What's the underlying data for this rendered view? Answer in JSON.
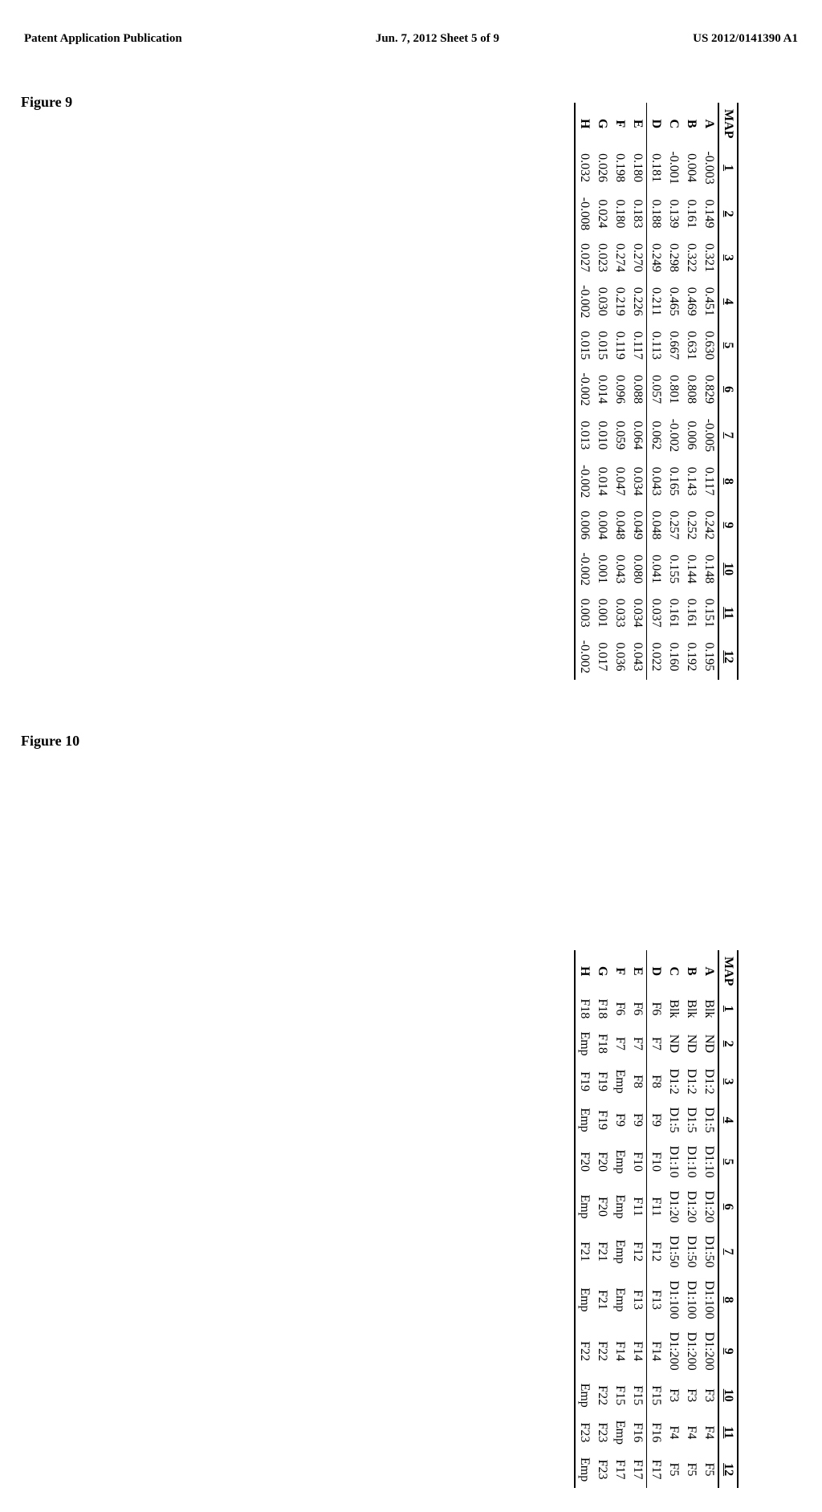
{
  "header": {
    "left": "Patent Application Publication",
    "center": "Jun. 7, 2012  Sheet 5 of 9",
    "right": "US 2012/0141390 A1"
  },
  "figure9": {
    "label": "Figure 9",
    "columns": [
      "MAP",
      "1",
      "2",
      "3",
      "4",
      "5",
      "6",
      "7",
      "8",
      "9",
      "10",
      "11",
      "12"
    ],
    "rows": [
      [
        "A",
        "-0.003",
        "0.149",
        "0.321",
        "0.451",
        "0.630",
        "0.829",
        "-0.005",
        "0.117",
        "0.242",
        "0.148",
        "0.151",
        "0.195"
      ],
      [
        "B",
        "0.004",
        "0.161",
        "0.322",
        "0.469",
        "0.631",
        "0.808",
        "0.006",
        "0.143",
        "0.252",
        "0.144",
        "0.161",
        "0.192"
      ],
      [
        "C",
        "-0.001",
        "0.139",
        "0.298",
        "0.465",
        "0.667",
        "0.801",
        "-0.002",
        "0.165",
        "0.257",
        "0.155",
        "0.161",
        "0.160"
      ],
      [
        "D",
        "0.181",
        "0.188",
        "0.249",
        "0.211",
        "0.113",
        "0.057",
        "0.062",
        "0.043",
        "0.048",
        "0.041",
        "0.037",
        "0.022"
      ],
      [
        "E",
        "0.180",
        "0.183",
        "0.270",
        "0.226",
        "0.117",
        "0.088",
        "0.064",
        "0.034",
        "0.049",
        "0.080",
        "0.034",
        "0.043"
      ],
      [
        "F",
        "0.198",
        "0.180",
        "0.274",
        "0.219",
        "0.119",
        "0.096",
        "0.059",
        "0.047",
        "0.048",
        "0.043",
        "0.033",
        "0.036"
      ],
      [
        "G",
        "0.026",
        "0.024",
        "0.023",
        "0.030",
        "0.015",
        "0.014",
        "0.010",
        "0.014",
        "0.004",
        "0.001",
        "0.001",
        "0.017"
      ],
      [
        "H",
        "0.032",
        "-0.008",
        "0.027",
        "-0.002",
        "0.015",
        "-0.002",
        "0.013",
        "-0.002",
        "0.006",
        "-0.002",
        "0.003",
        "-0.002"
      ]
    ]
  },
  "figure10": {
    "label": "Figure 10",
    "columns": [
      "MAP",
      "1",
      "2",
      "3",
      "4",
      "5",
      "6",
      "7",
      "8",
      "9",
      "10",
      "11",
      "12"
    ],
    "rows": [
      [
        "A",
        "Blk",
        "ND",
        "D1:2",
        "D1:5",
        "D1:10",
        "D1:20",
        "D1:50",
        "D1:100",
        "D1:200",
        "F3",
        "F4",
        "F5"
      ],
      [
        "B",
        "Blk",
        "ND",
        "D1:2",
        "D1:5",
        "D1:10",
        "D1:20",
        "D1:50",
        "D1:100",
        "D1:200",
        "F3",
        "F4",
        "F5"
      ],
      [
        "C",
        "Blk",
        "ND",
        "D1:2",
        "D1:5",
        "D1:10",
        "D1:20",
        "D1:50",
        "D1:100",
        "D1:200",
        "F3",
        "F4",
        "F5"
      ],
      [
        "D",
        "F6",
        "F7",
        "F8",
        "F9",
        "F10",
        "F11",
        "F12",
        "F13",
        "F14",
        "F15",
        "F16",
        "F17"
      ],
      [
        "E",
        "F6",
        "F7",
        "F8",
        "F9",
        "F10",
        "F11",
        "F12",
        "F13",
        "F14",
        "F15",
        "F16",
        "F17"
      ],
      [
        "F",
        "F6",
        "F7",
        "Emp",
        "F9",
        "Emp",
        "Emp",
        "Emp",
        "Emp",
        "F14",
        "F15",
        "Emp",
        "F17"
      ],
      [
        "G",
        "F18",
        "F18",
        "F19",
        "F19",
        "F20",
        "F20",
        "F21",
        "F21",
        "F22",
        "F22",
        "F23",
        "F23"
      ],
      [
        "H",
        "F18",
        "Emp",
        "F19",
        "Emp",
        "F20",
        "Emp",
        "F21",
        "Emp",
        "F22",
        "Emp",
        "F23",
        "Emp"
      ]
    ]
  }
}
